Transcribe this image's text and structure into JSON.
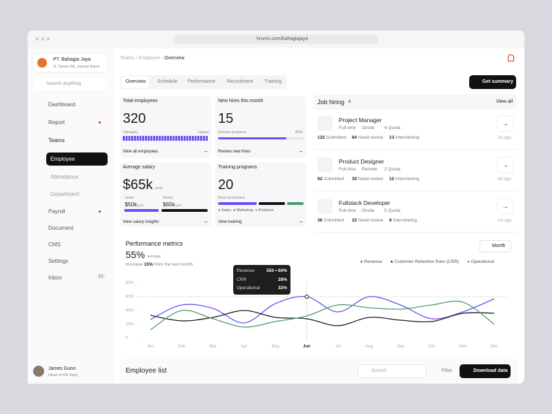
{
  "browser": {
    "url": "hrums.com/bahagiajaya"
  },
  "company": {
    "name": "PT. Bahagia Jaya",
    "address": "Jl. Tamrin 88, Jakarta Barat"
  },
  "sidebar": {
    "search": "Search anything",
    "menu": [
      "Dashboard",
      "Report",
      "Teams",
      "Employee",
      "Attendance",
      "Department",
      "Payroll",
      "Document",
      "CMS",
      "Settings",
      "Inbox"
    ],
    "inbox_badge": "12"
  },
  "user": {
    "name": "James Gunn",
    "role": "Head of HR Dept."
  },
  "breadcrumb": [
    "Teams",
    "Employee",
    "Overview"
  ],
  "tabs": [
    "Overview",
    "Schedule",
    "Performance",
    "Recruitment",
    "Training"
  ],
  "summary_button": "Get summary",
  "cards": {
    "total": {
      "title": "Total employees",
      "value": "320",
      "left": "Unhappy",
      "right": "Happy",
      "link": "View all employees"
    },
    "hires": {
      "title": "New hires this month",
      "value": "15",
      "progress_label": "Review progress",
      "progress": {
        "value": 80,
        "label": "80%"
      },
      "link": "Review new hires"
    },
    "salary": {
      "title": "Average salary",
      "value": "$65k",
      "unit": "/year",
      "junior": {
        "label": "Junior",
        "value": "$50k",
        "unit": "/year"
      },
      "senior": {
        "label": "Senior",
        "value": "$65k",
        "unit": "/year"
      },
      "link": "View salary insights"
    },
    "training": {
      "title": "Training programs",
      "value": "20",
      "subtitle": "Most productive",
      "legend": [
        "Sales",
        "Marketing",
        "Products"
      ],
      "link": "View training"
    }
  },
  "jobs": {
    "title": "Job hiring",
    "count": "8",
    "view_all": "View all",
    "items": [
      {
        "title": "Project Manager",
        "type": "Full-time",
        "place": "Onsite",
        "quota": "4 Quota",
        "submitted": "122",
        "submitted_label": "Submitted",
        "review": "84",
        "review_label": "Need review",
        "interviewing": "13",
        "interviewing_label": "Interviewing",
        "ago": "2d ago"
      },
      {
        "title": "Product Designer",
        "type": "Full-time",
        "place": "Remote",
        "quota": "2 Quota",
        "submitted": "92",
        "submitted_label": "Submitted",
        "review": "30",
        "review_label": "Need review",
        "interviewing": "12",
        "interviewing_label": "Interviewing",
        "ago": "4d ago"
      },
      {
        "title": "Fullstack Developer",
        "type": "Full-time",
        "place": "Onsite",
        "quota": "5 Quota",
        "submitted": "36",
        "submitted_label": "Submitted",
        "review": "22",
        "review_label": "Need review",
        "interviewing": "9",
        "interviewing_label": "Interviewing",
        "ago": "1w ago"
      }
    ]
  },
  "performance": {
    "title": "Performance metrics",
    "value": "55%",
    "value_note": "average",
    "note_pre": "Increase",
    "note_value": "15%",
    "note_post": "from the last month",
    "period": "Month",
    "chart": {
      "type": "line",
      "categories": [
        "Jan",
        "Feb",
        "Mar",
        "Apr",
        "May",
        "Jun",
        "Jul",
        "Aug",
        "Sep",
        "Oct",
        "Nov",
        "Dec"
      ],
      "series": [
        {
          "name": "Revenue",
          "color": "#6a4ff0",
          "values": [
            27,
            48,
            43,
            22,
            50,
            60,
            38,
            60,
            48,
            28,
            38,
            57
          ]
        },
        {
          "name": "Customer Retention Rate (CRR)",
          "color": "#1a1a1a",
          "values": [
            33,
            25,
            30,
            40,
            30,
            28,
            18,
            30,
            26,
            24,
            36,
            36
          ]
        },
        {
          "name": "Operational",
          "color": "#4e9a6e",
          "values": [
            12,
            40,
            28,
            16,
            24,
            32,
            48,
            44,
            42,
            48,
            52,
            20
          ]
        }
      ],
      "ylim": [
        0,
        80
      ],
      "yticks": [
        0,
        {
          "value": 20,
          "label": "20%"
        },
        {
          "value": 40,
          "label": "40%"
        },
        {
          "value": 60,
          "label": "60%"
        },
        {
          "value": 80,
          "label": "80%"
        }
      ],
      "tooltip": [
        {
          "name": "Revenue",
          "value": "550 • 60%"
        },
        {
          "name": "CRR",
          "value": "28%"
        },
        {
          "name": "Operational",
          "value": "32%"
        }
      ]
    }
  },
  "employee_list": {
    "title": "Employee list",
    "search": "Search",
    "filter": "Filter",
    "download": "Download data"
  }
}
